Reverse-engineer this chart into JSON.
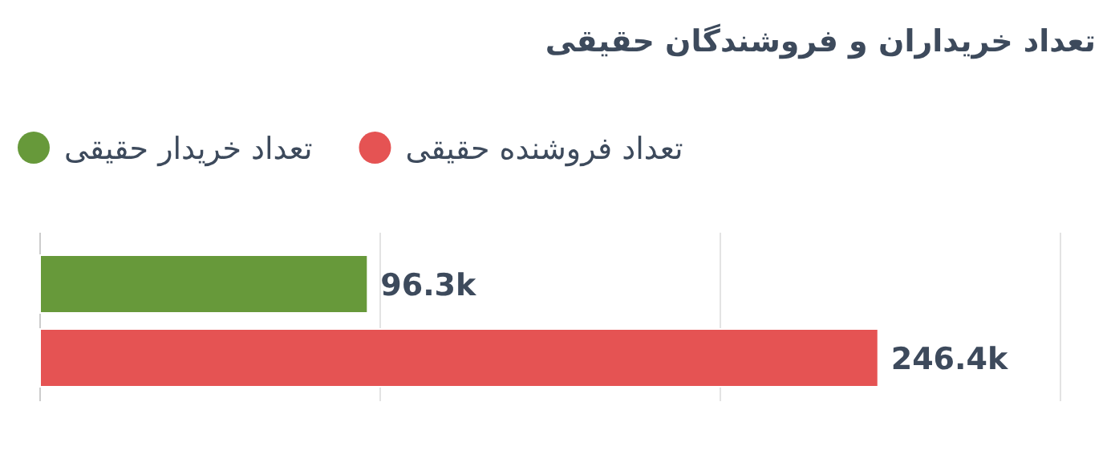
{
  "chart_data": {
    "type": "bar",
    "orientation": "horizontal",
    "title": "تعداد خریداران و فروشندگان حقیقی",
    "categories": [
      null
    ],
    "series": [
      {
        "name": "تعداد خریدار حقیقی",
        "color": "#67993a",
        "values": [
          96.3
        ],
        "value_labels": [
          "96.3k"
        ]
      },
      {
        "name": "تعداد فروشنده حقیقی",
        "color": "#e55353",
        "values": [
          246.4
        ],
        "value_labels": [
          "246.4k"
        ]
      }
    ],
    "xlim": [
      0,
      300
    ],
    "xticks": [
      {
        "value": 0,
        "label": null
      },
      {
        "value": 100,
        "label": null
      },
      {
        "value": 200,
        "label": null
      },
      {
        "value": 300,
        "label": null
      }
    ],
    "tick_labels": false,
    "grid": "x",
    "legend": "top left"
  }
}
